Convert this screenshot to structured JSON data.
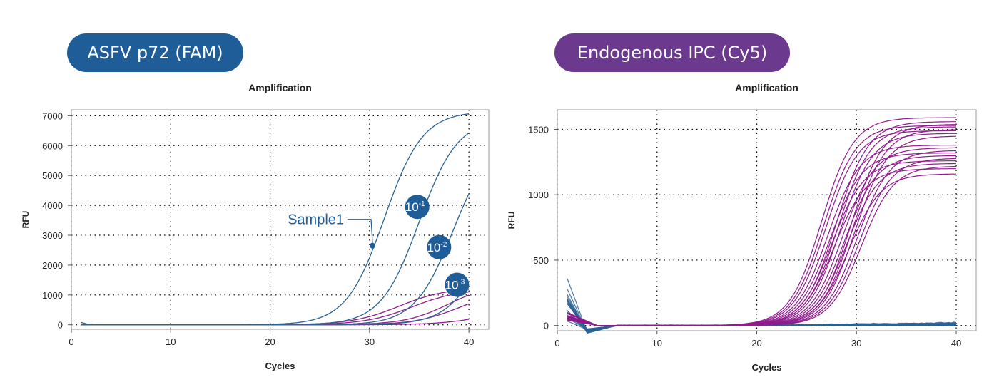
{
  "colors": {
    "blue": "#1f5d99",
    "purple": "#6b3a8e",
    "blue_curve": "#2a6294",
    "purple_curve": "#8c1f8c",
    "ipc_curve": "#8f1b8c"
  },
  "headers": {
    "left": "ASFV p72 (FAM)",
    "right": "Endogenous IPC (Cy5)"
  },
  "chart_data": [
    {
      "type": "line",
      "title": "Amplification",
      "xlabel": "Cycles",
      "ylabel": "RFU",
      "xlim": [
        0,
        42
      ],
      "ylim": [
        -150,
        7200
      ],
      "xticks": [
        0,
        10,
        20,
        30,
        40
      ],
      "yticks": [
        0,
        1000,
        2000,
        3000,
        4000,
        5000,
        6000,
        7000
      ],
      "grid": true,
      "series": [
        {
          "color": "blue",
          "sigmoid": {
            "top": 7150,
            "mid": 31.5,
            "k": 0.52,
            "base": 0
          }
        },
        {
          "color": "blue",
          "sigmoid": {
            "top": 6900,
            "mid": 35.0,
            "k": 0.52,
            "base": 0
          }
        },
        {
          "color": "blue",
          "sigmoid": {
            "top": 6300,
            "mid": 38.4,
            "k": 0.52,
            "base": 0
          }
        },
        {
          "color": "blue",
          "sigmoid": {
            "top": 6000,
            "mid": 42.3,
            "k": 0.5,
            "base": 0
          }
        },
        {
          "color": "purple",
          "sigmoid": {
            "top": 1250,
            "mid": 33.0,
            "k": 0.42,
            "base": 0
          }
        },
        {
          "color": "purple",
          "sigmoid": {
            "top": 1200,
            "mid": 34.3,
            "k": 0.42,
            "base": 0
          }
        },
        {
          "color": "purple",
          "sigmoid": {
            "top": 1400,
            "mid": 38.0,
            "k": 0.45,
            "base": 0
          }
        },
        {
          "color": "purple",
          "sigmoid": {
            "top": 1150,
            "mid": 39.0,
            "k": 0.45,
            "base": 0
          }
        },
        {
          "color": "purple",
          "sigmoid": {
            "top": 800,
            "mid": 43.0,
            "k": 0.4,
            "base": 0
          }
        }
      ],
      "annotations": [
        {
          "text": "Sample1",
          "point": [
            30.3,
            2650
          ]
        },
        {
          "text": "10",
          "sup": "-1",
          "at": [
            34.8,
            3950
          ]
        },
        {
          "text": "10",
          "sup": "-2",
          "at": [
            37.0,
            2600
          ]
        },
        {
          "text": "10",
          "sup": "-3",
          "at": [
            38.8,
            1340
          ]
        }
      ]
    },
    {
      "type": "line",
      "title": "Amplification",
      "xlabel": "Cycles",
      "ylabel": "RFU",
      "xlim": [
        0,
        42
      ],
      "ylim": [
        -40,
        1650
      ],
      "xticks": [
        0,
        10,
        20,
        30,
        40
      ],
      "yticks": [
        0,
        500,
        1000,
        1500
      ],
      "grid": true,
      "ipc_plateaus": [
        1590,
        1560,
        1540,
        1530,
        1520,
        1500,
        1490,
        1470,
        1450,
        1380,
        1360,
        1340,
        1320,
        1300,
        1280,
        1260,
        1240,
        1220,
        1200,
        1160
      ],
      "ipc_midpoints_range": [
        26.5,
        30.5
      ],
      "blue_series_count": 20,
      "blue_start_range": [
        30,
        370
      ]
    }
  ]
}
